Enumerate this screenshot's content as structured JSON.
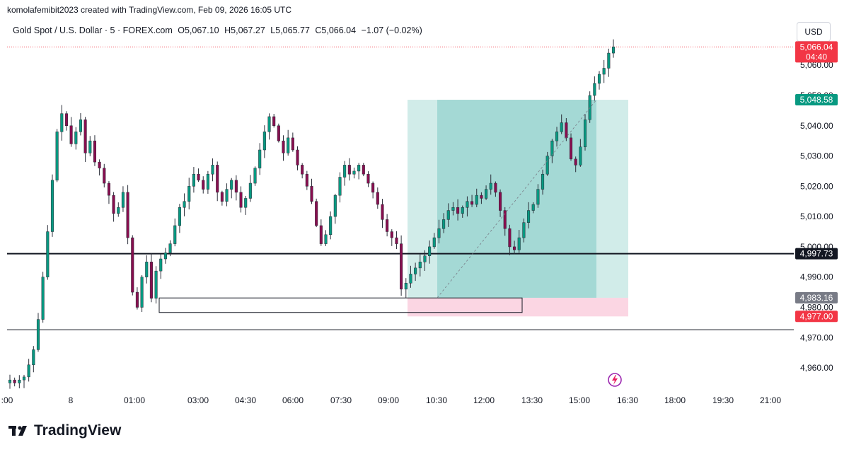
{
  "header": {
    "credit": "komolafemibit2023 created with TradingView.com, Feb 09, 2026 16:05 UTC"
  },
  "symbol": {
    "name": "Gold Spot / U.S. Dollar · 5 · FOREX.com",
    "open": "O5,067.10",
    "high": "H5,067.27",
    "low": "L5,065.77",
    "close": "C5,066.04",
    "change": "−1.07 (−0.02%)"
  },
  "currency": "USD",
  "branding": {
    "logo_text": "TradingView"
  },
  "colors": {
    "up": "#089981",
    "down": "#880e4f",
    "candle": "#2a2e39",
    "target_zone": "#b2dfdb",
    "target_zone_dark": "#80cbc4",
    "stop_zone": "#f8bbd0",
    "last_price_label": "#f23645",
    "target_label": "#089981",
    "level_label": "#131722",
    "entry_label": "#787b86"
  },
  "chart_data": {
    "type": "candlestick",
    "ylim": [
      4953,
      5075
    ],
    "yticks": [
      "5,060.00",
      "5,050.00",
      "5,040.00",
      "5,030.00",
      "5,020.00",
      "5,010.00",
      "5,000.00",
      "4,990.00",
      "4,980.00",
      "4,970.00",
      "4,960.00"
    ],
    "ytick_values": [
      5060,
      5050,
      5040,
      5030,
      5020,
      5010,
      5000,
      4990,
      4980,
      4970,
      4960
    ],
    "xticks": [
      ":00",
      "8",
      "01:00",
      "03:00",
      "04:30",
      "06:00",
      "07:30",
      "09:00",
      "10:30",
      "12:00",
      "13:30",
      "15:00",
      "16:30",
      "18:00",
      "19:30",
      "21:00"
    ],
    "horizontal_levels": [
      {
        "value": 4997.73,
        "label": "4,997.73",
        "style": "thick"
      },
      {
        "value": 4972.6,
        "style": "thin"
      }
    ],
    "price_labels": [
      {
        "value": 5066.04,
        "label": "5,066.04",
        "sublabel": "04:40",
        "kind": "last"
      },
      {
        "value": 5048.58,
        "label": "5,048.58",
        "kind": "target"
      },
      {
        "value": 4997.73,
        "label": "4,997.73",
        "kind": "level"
      },
      {
        "value": 4983.16,
        "label": "4,983.16",
        "kind": "entry"
      },
      {
        "value": 4977.0,
        "label": "4,977.00",
        "kind": "stop"
      }
    ],
    "position": {
      "side": "long",
      "entry": 4983.16,
      "target": 5048.58,
      "stop": 4977.0
    },
    "rectangle_zone": {
      "top": 4983.1,
      "bottom": 4978.3
    },
    "close_path": [
      4956,
      4955,
      4956,
      4957,
      4961,
      4966,
      4976,
      4990,
      5005,
      5022,
      5038,
      5044,
      5040,
      5034,
      5038,
      5042,
      5031,
      5035,
      5028,
      5026,
      5021,
      5017,
      5011,
      5013,
      5018,
      5003,
      4985,
      4980,
      4990,
      4995,
      4983,
      4992,
      4996,
      4998,
      5001,
      5007,
      5013,
      5015,
      5020,
      5024,
      5022,
      5019,
      5024,
      5027,
      5018,
      5015,
      5019,
      5022,
      5018,
      5013,
      5016,
      5021,
      5026,
      5032,
      5038,
      5043,
      5040,
      5035,
      5031,
      5036,
      5032,
      5027,
      5024,
      5020,
      5015,
      5007,
      5001,
      5004,
      5010,
      5017,
      5023,
      5027,
      5024,
      5025,
      5027,
      5024,
      5021,
      5018,
      5014,
      5009,
      5005,
      5003,
      5001,
      4986,
      4988,
      4991,
      4993,
      4995,
      4997,
      5000,
      5003,
      5006,
      5009,
      5012,
      5013,
      5011,
      5013,
      5015,
      5014,
      5017,
      5016,
      5019,
      5021,
      5018,
      5012,
      5006,
      5000,
      4999,
      5003,
      5008,
      5012,
      5014,
      5019,
      5024,
      5030,
      5035,
      5038,
      5041,
      5036,
      5029,
      5027,
      5033,
      5042,
      5050,
      5054,
      5057,
      5059,
      5064,
      5066.04
    ]
  }
}
